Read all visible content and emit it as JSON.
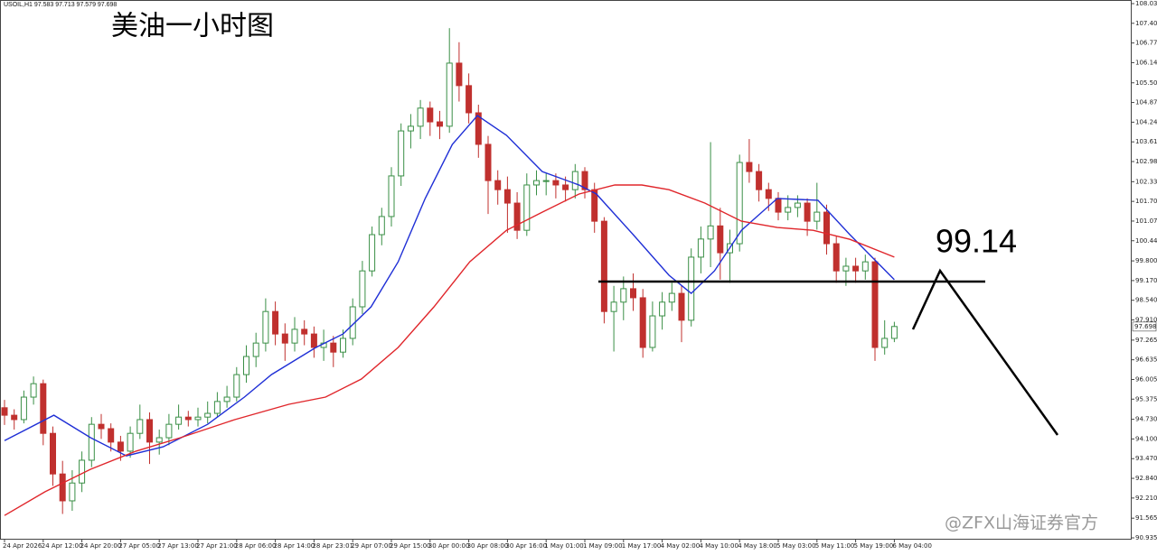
{
  "chart_data": {
    "type": "candlestick",
    "header": "USOIL,H1  97.583 97.713 97.579 97.698",
    "title": "美油一小时图",
    "annotation": "99.14",
    "level": 99.14,
    "watermark": "@ZFX山海证券官方",
    "last_price": 97.698,
    "up_color": "#3a8f46",
    "down_color": "#c0302e",
    "ylim": [
      90.935,
      108.035
    ],
    "yticks": [
      108.035,
      107.405,
      106.775,
      106.145,
      {
        "value": 105.5,
        "label": "105.500"
      },
      {
        "value": 104.87,
        "label": "104.870"
      },
      {
        "value": 104.24,
        "label": "104.240"
      },
      {
        "value": 103.61,
        "label": "103.610"
      },
      {
        "value": 102.98,
        "label": "102.980"
      },
      102.335,
      101.705,
      101.075,
      100.445,
      {
        "value": 99.8,
        "label": "99.800"
      },
      {
        "value": 99.17,
        "label": "99.170"
      },
      {
        "value": 98.54,
        "label": "98.540"
      },
      {
        "value": 97.91,
        "label": "97.910"
      },
      97.265,
      96.635,
      96.005,
      95.375,
      {
        "value": 94.73,
        "label": "94.730"
      },
      {
        "value": 94.1,
        "label": "94.100"
      },
      {
        "value": 93.47,
        "label": "93.470"
      },
      {
        "value": 92.84,
        "label": "92.840"
      },
      {
        "value": 92.21,
        "label": "92.210"
      },
      91.565,
      90.935
    ],
    "xticks": [
      {
        "value": 0,
        "label": "24 Apr 2026"
      },
      {
        "value": 4,
        "label": "24 Apr 12:00"
      },
      {
        "value": 8,
        "label": "24 Apr 20:00"
      },
      {
        "value": 12,
        "label": "27 Apr 05:00"
      },
      {
        "value": 16,
        "label": "27 Apr 13:00"
      },
      {
        "value": 20,
        "label": "27 Apr 21:00"
      },
      {
        "value": 24,
        "label": "28 Apr 06:00"
      },
      {
        "value": 28,
        "label": "28 Apr 14:00"
      },
      {
        "value": 32,
        "label": "28 Apr 23:01"
      },
      {
        "value": 36,
        "label": "29 Apr 07:00"
      },
      {
        "value": 40,
        "label": "29 Apr 15:00"
      },
      {
        "value": 44,
        "label": "30 Apr 00:00"
      },
      {
        "value": 48,
        "label": "30 Apr 08:00"
      },
      {
        "value": 52,
        "label": "30 Apr 16:00"
      },
      {
        "value": 56,
        "label": "1 May 01:00"
      },
      {
        "value": 60,
        "label": "1 May 09:00"
      },
      {
        "value": 64,
        "label": "1 May 17:00"
      },
      {
        "value": 68,
        "label": "4 May 02:00"
      },
      {
        "value": 72,
        "label": "4 May 10:00"
      },
      {
        "value": 76,
        "label": "4 May 18:00"
      },
      {
        "value": 80,
        "label": "5 May 03:00"
      },
      {
        "value": 84,
        "label": "5 May 11:00"
      },
      {
        "value": 88,
        "label": "5 May 19:00"
      },
      {
        "value": 92,
        "label": "6 May 04:00"
      }
    ],
    "open": [
      95.1,
      94.86,
      94.72,
      95.44,
      95.87,
      94.28,
      92.98,
      92.12,
      92.69,
      93.42,
      94.57,
      94.43,
      94.0,
      93.71,
      94.28,
      94.72,
      94.0,
      94.14,
      94.57,
      94.8,
      94.72,
      94.8,
      94.92,
      95.3,
      95.44,
      96.16,
      96.74,
      97.17,
      98.18,
      97.46,
      97.17,
      97.61,
      97.46,
      97.03,
      97.17,
      96.88,
      97.32,
      98.33,
      99.48,
      100.64,
      101.22,
      102.52,
      103.96,
      104.11,
      104.69,
      104.25,
      104.11,
      106.13,
      105.41,
      104.54,
      103.53,
      102.37,
      102.08,
      101.65,
      100.78,
      102.23,
      102.37,
      102.37,
      102.23,
      102.08,
      102.66,
      102.08,
      101.07,
      98.18,
      98.48,
      98.91,
      98.62,
      97.03,
      98.04,
      98.48,
      98.76,
      97.9,
      99.92,
      100.5,
      100.92,
      100.06,
      100.35,
      102.95,
      102.66,
      102.08,
      101.8,
      101.36,
      101.51,
      101.65,
      101.07,
      101.36,
      100.35,
      99.48,
      99.63,
      99.48,
      99.77,
      97.03,
      97.32
    ],
    "high": [
      95.35,
      95.05,
      95.65,
      96.1,
      96.0,
      94.5,
      93.4,
      93.1,
      93.7,
      94.8,
      94.9,
      94.6,
      94.2,
      94.5,
      95.2,
      94.95,
      94.4,
      94.9,
      95.2,
      95.0,
      95.1,
      95.3,
      95.6,
      95.8,
      96.4,
      97.1,
      97.5,
      98.6,
      98.5,
      97.8,
      98.0,
      97.9,
      97.7,
      97.6,
      97.4,
      97.6,
      98.6,
      99.8,
      100.9,
      101.5,
      102.8,
      104.2,
      104.5,
      104.95,
      104.9,
      104.6,
      107.25,
      106.8,
      105.8,
      104.8,
      103.8,
      102.7,
      102.5,
      102.0,
      102.6,
      102.7,
      102.6,
      102.6,
      102.5,
      102.9,
      102.8,
      102.3,
      101.2,
      99.0,
      99.3,
      99.4,
      98.9,
      98.5,
      98.8,
      99.1,
      99.0,
      100.2,
      100.9,
      103.6,
      101.5,
      100.8,
      103.2,
      103.7,
      102.9,
      102.3,
      102.0,
      101.9,
      101.9,
      101.8,
      102.3,
      101.6,
      100.6,
      99.9,
      99.9,
      100.0,
      99.9,
      97.9,
      97.85
    ],
    "low": [
      94.55,
      94.4,
      94.6,
      95.2,
      93.9,
      92.6,
      91.7,
      91.8,
      92.4,
      93.2,
      94.1,
      93.7,
      93.4,
      93.5,
      94.1,
      93.3,
      93.6,
      93.9,
      94.4,
      94.5,
      94.5,
      94.6,
      94.8,
      95.1,
      95.3,
      95.9,
      96.4,
      96.9,
      97.1,
      96.6,
      96.9,
      97.1,
      96.7,
      96.6,
      96.4,
      96.7,
      97.1,
      98.1,
      99.3,
      100.3,
      100.9,
      102.2,
      103.4,
      103.7,
      103.8,
      103.7,
      103.9,
      104.9,
      104.2,
      103.1,
      101.3,
      101.6,
      100.7,
      100.5,
      100.6,
      101.9,
      101.9,
      101.8,
      101.7,
      101.8,
      101.8,
      100.7,
      97.8,
      96.9,
      97.9,
      98.2,
      96.7,
      96.9,
      97.6,
      98.2,
      97.2,
      97.7,
      99.4,
      99.6,
      99.2,
      99.1,
      100.1,
      102.3,
      101.7,
      101.4,
      101.1,
      101.1,
      101.2,
      100.6,
      100.8,
      100.0,
      99.1,
      99.0,
      99.1,
      99.2,
      96.6,
      96.8,
      97.2
    ],
    "close": [
      94.86,
      94.72,
      95.44,
      95.87,
      94.28,
      92.98,
      92.12,
      92.69,
      93.42,
      94.57,
      94.43,
      94.0,
      93.71,
      94.28,
      94.72,
      94.0,
      94.14,
      94.57,
      94.8,
      94.72,
      94.8,
      94.92,
      95.3,
      95.44,
      96.16,
      96.74,
      97.17,
      98.18,
      97.46,
      97.17,
      97.61,
      97.46,
      97.03,
      97.17,
      96.88,
      97.32,
      98.33,
      99.48,
      100.64,
      101.22,
      102.52,
      103.96,
      104.11,
      104.69,
      104.25,
      104.11,
      106.13,
      105.41,
      104.54,
      103.53,
      102.37,
      102.08,
      101.65,
      100.78,
      102.23,
      102.37,
      102.37,
      102.23,
      102.08,
      102.66,
      102.08,
      101.07,
      98.18,
      98.48,
      98.91,
      98.62,
      97.03,
      98.04,
      98.48,
      98.76,
      97.9,
      99.92,
      100.5,
      100.92,
      100.06,
      100.35,
      102.95,
      102.66,
      102.08,
      101.8,
      101.36,
      101.51,
      101.65,
      101.07,
      101.36,
      100.35,
      99.48,
      99.63,
      99.48,
      99.77,
      97.03,
      97.32,
      97.7
    ],
    "lines": [
      {
        "color": "#1f2fd6",
        "x": [
          0,
          5.1,
          8.9,
          12.6,
          16.4,
          21,
          24.8,
          27.6,
          32.2,
          35,
          37.9,
          40.7,
          43.5,
          46.3,
          48.9,
          51.9,
          55.6,
          59.4,
          61.2,
          65,
          68.7,
          71,
          73.4,
          76.2,
          79.9,
          84.1,
          87.4,
          92
        ],
        "values": [
          94.05,
          94.86,
          94.14,
          93.56,
          93.85,
          94.57,
          95.44,
          96.16,
          97.03,
          97.46,
          98.33,
          99.77,
          101.8,
          103.53,
          104.45,
          103.82,
          102.66,
          102.23,
          101.94,
          100.64,
          99.34,
          98.76,
          99.48,
          100.78,
          101.8,
          101.74,
          100.64,
          99.2
        ]
      },
      {
        "color": "#e0262b",
        "x": [
          0,
          4.2,
          8.9,
          13.6,
          18.2,
          23.8,
          29.4,
          33.2,
          36.9,
          40.7,
          44.4,
          48.1,
          51.9,
          55.6,
          59.4,
          63.1,
          65.9,
          68.7,
          72.4,
          76.2,
          79.9,
          83.6,
          87.4,
          92
        ],
        "values": [
          91.65,
          92.41,
          93.13,
          93.71,
          94.14,
          94.72,
          95.21,
          95.44,
          96.02,
          97.03,
          98.33,
          99.77,
          100.78,
          101.36,
          101.94,
          102.23,
          102.23,
          102.08,
          101.65,
          101.07,
          100.87,
          100.78,
          100.49,
          99.92
        ]
      }
    ]
  }
}
